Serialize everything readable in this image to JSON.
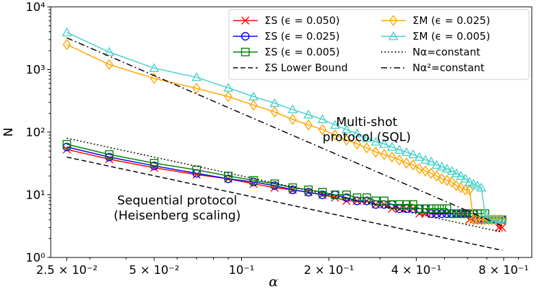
{
  "chart_data": {
    "type": "line",
    "xscale": "log",
    "yscale": "log",
    "xlabel": "α",
    "ylabel": "N",
    "xlim": [
      0.022,
      1.0
    ],
    "ylim": [
      1.0,
      10000
    ],
    "x_ticks": [
      {
        "value": 0.025,
        "label": "2.5 × 10⁻²"
      },
      {
        "value": 0.05,
        "label": "5 × 10⁻²"
      },
      {
        "value": 0.1,
        "label": "10⁻¹"
      },
      {
        "value": 0.2,
        "label": "2 × 10⁻¹"
      },
      {
        "value": 0.4,
        "label": "4 × 10⁻¹"
      },
      {
        "value": 0.8,
        "label": "8 × 10⁻¹"
      }
    ],
    "y_ticks": [
      {
        "value": 1,
        "label": "10⁰"
      },
      {
        "value": 10,
        "label": "10¹"
      },
      {
        "value": 100,
        "label": "10²"
      },
      {
        "value": 1000,
        "label": "10³"
      },
      {
        "value": 10000,
        "label": "10⁴"
      }
    ],
    "grid": false,
    "legend_position": "top-right",
    "annotations": [
      {
        "lines": [
          "Multi-shot",
          "protocol (SQL)"
        ],
        "x": 0.27,
        "y": 125
      },
      {
        "lines": [
          "Sequential protocol",
          "(Heisenberg scaling)"
        ],
        "x": 0.06,
        "y": 7
      }
    ],
    "series": [
      {
        "name": "ΣS (ϵ = 0.050)",
        "color": "#ff0000",
        "marker": "x",
        "linestyle": "solid",
        "x": [
          0.025,
          0.035,
          0.05,
          0.07,
          0.09,
          0.11,
          0.13,
          0.15,
          0.17,
          0.19,
          0.21,
          0.23,
          0.25,
          0.27,
          0.29,
          0.31,
          0.33,
          0.35,
          0.37,
          0.39,
          0.41,
          0.43,
          0.45,
          0.47,
          0.49,
          0.51,
          0.53,
          0.55,
          0.57,
          0.59,
          0.61,
          0.63,
          0.65,
          0.67,
          0.69,
          0.71,
          0.73,
          0.75,
          0.77,
          0.79
        ],
        "y": [
          53,
          37,
          27,
          21,
          18,
          15,
          13,
          12,
          11,
          10,
          9,
          8,
          8,
          8,
          7,
          7,
          6,
          6,
          6,
          6,
          5,
          5,
          5,
          5,
          5,
          5,
          5,
          5,
          5,
          5,
          4,
          4,
          4,
          4,
          4,
          4,
          4,
          4,
          3,
          3
        ]
      },
      {
        "name": "ΣS (ϵ = 0.025)",
        "color": "#0000ff",
        "marker": "o",
        "linestyle": "solid",
        "x": [
          0.025,
          0.035,
          0.05,
          0.07,
          0.09,
          0.11,
          0.13,
          0.15,
          0.17,
          0.19,
          0.21,
          0.23,
          0.25,
          0.27,
          0.29,
          0.31,
          0.33,
          0.35,
          0.37,
          0.39,
          0.41,
          0.43,
          0.45,
          0.47,
          0.49,
          0.51,
          0.53,
          0.55,
          0.57,
          0.59,
          0.61,
          0.63,
          0.65,
          0.67,
          0.69,
          0.71,
          0.73,
          0.75,
          0.77,
          0.79
        ],
        "y": [
          58,
          40,
          29,
          22,
          18,
          16,
          14,
          12,
          11,
          10,
          10,
          9,
          8,
          8,
          7,
          7,
          7,
          6,
          6,
          6,
          6,
          6,
          5,
          5,
          5,
          5,
          5,
          5,
          5,
          5,
          5,
          5,
          4,
          4,
          4,
          4,
          4,
          4,
          4,
          4
        ]
      },
      {
        "name": "ΣS (ϵ = 0.005)",
        "color": "#008000",
        "marker": "s",
        "linestyle": "solid",
        "x": [
          0.025,
          0.035,
          0.05,
          0.07,
          0.09,
          0.11,
          0.13,
          0.15,
          0.17,
          0.19,
          0.21,
          0.23,
          0.25,
          0.27,
          0.29,
          0.31,
          0.33,
          0.35,
          0.37,
          0.39,
          0.41,
          0.43,
          0.45,
          0.47,
          0.49,
          0.51,
          0.53,
          0.55,
          0.57,
          0.59,
          0.61,
          0.63,
          0.65,
          0.67,
          0.69,
          0.71,
          0.73,
          0.75,
          0.77,
          0.79
        ],
        "y": [
          64,
          44,
          32,
          25,
          20,
          17,
          15,
          13,
          12,
          11,
          10,
          10,
          9,
          9,
          8,
          8,
          7,
          7,
          7,
          7,
          6,
          6,
          6,
          6,
          6,
          6,
          5,
          5,
          5,
          5,
          5,
          5,
          5,
          5,
          5,
          4,
          4,
          4,
          4,
          4
        ]
      },
      {
        "name": "ΣS Lower Bound",
        "color": "#000000",
        "marker": "none",
        "linestyle": "dashed",
        "x": [
          0.025,
          0.79
        ],
        "y": [
          40,
          1.3
        ]
      },
      {
        "name": "ΣM (ϵ = 0.025)",
        "color": "#ffa500",
        "marker": "d",
        "linestyle": "solid",
        "x": [
          0.025,
          0.035,
          0.05,
          0.07,
          0.09,
          0.11,
          0.13,
          0.15,
          0.17,
          0.19,
          0.21,
          0.23,
          0.25,
          0.27,
          0.29,
          0.31,
          0.33,
          0.35,
          0.37,
          0.39,
          0.41,
          0.43,
          0.45,
          0.47,
          0.49,
          0.51,
          0.53,
          0.55,
          0.57,
          0.59,
          0.61,
          0.63,
          0.65,
          0.67,
          0.69,
          0.71,
          0.73,
          0.75,
          0.77,
          0.79
        ],
        "y": [
          2500,
          1200,
          720,
          500,
          370,
          270,
          210,
          160,
          130,
          110,
          90,
          75,
          65,
          56,
          48,
          44,
          40,
          36,
          32,
          30,
          26,
          24,
          22,
          20,
          18,
          17,
          16,
          14,
          13,
          12,
          12,
          4,
          4,
          4,
          4,
          4,
          4,
          4,
          4,
          4
        ]
      },
      {
        "name": "ΣM (ϵ = 0.005)",
        "color": "#48d1cc",
        "marker": "^",
        "linestyle": "solid",
        "x": [
          0.025,
          0.035,
          0.05,
          0.07,
          0.09,
          0.11,
          0.13,
          0.15,
          0.17,
          0.19,
          0.21,
          0.23,
          0.25,
          0.27,
          0.29,
          0.31,
          0.33,
          0.35,
          0.37,
          0.39,
          0.41,
          0.43,
          0.45,
          0.47,
          0.49,
          0.51,
          0.53,
          0.55,
          0.57,
          0.59,
          0.61,
          0.63,
          0.65,
          0.67,
          0.69,
          0.71,
          0.73,
          0.75,
          0.77,
          0.79
        ],
        "y": [
          3900,
          1900,
          1050,
          750,
          510,
          370,
          290,
          230,
          190,
          160,
          130,
          110,
          95,
          80,
          70,
          65,
          58,
          52,
          48,
          44,
          40,
          36,
          34,
          30,
          28,
          26,
          24,
          22,
          20,
          18,
          16,
          15,
          14,
          13,
          5,
          4,
          4,
          4,
          4,
          4
        ]
      },
      {
        "name": "Nα=constant",
        "color": "#000000",
        "marker": "none",
        "linestyle": "dotted",
        "x": [
          0.025,
          0.79
        ],
        "y": [
          80,
          2.53
        ]
      },
      {
        "name": "Nα²=constant",
        "color": "#000000",
        "marker": "none",
        "linestyle": "dashdot",
        "x": [
          0.025,
          0.79
        ],
        "y": [
          3200,
          3.2
        ]
      }
    ]
  }
}
